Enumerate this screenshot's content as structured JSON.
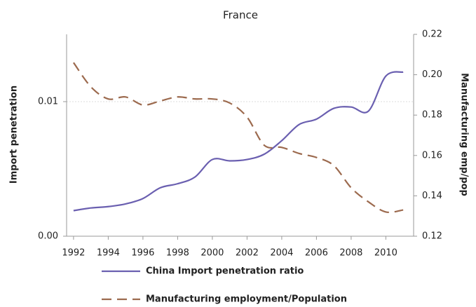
{
  "chart_data": {
    "type": "line",
    "title": "France",
    "x": [
      1992,
      1993,
      1994,
      1995,
      1996,
      1997,
      1998,
      1999,
      2000,
      2001,
      2002,
      2003,
      2004,
      2005,
      2006,
      2007,
      2008,
      2009,
      2010,
      2011
    ],
    "xlim": [
      1991.6,
      2011.6
    ],
    "xticks": [
      1992,
      1994,
      1996,
      1998,
      2000,
      2002,
      2004,
      2006,
      2008,
      2010
    ],
    "ylim": [
      0,
      0.015
    ],
    "yticks": [
      {
        "value": 0,
        "label": "0.00"
      },
      0.01
    ],
    "y2lim": [
      0.12,
      0.22
    ],
    "y2ticks": [
      0.12,
      0.14,
      0.16,
      0.18,
      {
        "value": 0.2,
        "label": "0.20"
      },
      0.22
    ],
    "ylabel": "Import penetration",
    "y2label": "Manufacturing emp/pop",
    "grid": true,
    "legend": "bottom",
    "series": [
      {
        "name": "China Import penetration ratio",
        "color": "#6a5fb0",
        "dash": "solid",
        "values": [
          0.0019,
          0.0021,
          0.0022,
          0.0024,
          0.0028,
          0.0036,
          0.0039,
          0.0044,
          0.0057,
          0.0056,
          0.0057,
          0.0061,
          0.0071,
          0.0083,
          0.0087,
          0.0095,
          0.0096,
          0.0093,
          0.0119,
          0.0122
        ]
      },
      {
        "name": "Manufacturing employment/Population",
        "color": "#9c6a4e",
        "dash": "dashed",
        "axis": "y2",
        "values": [
          0.206,
          0.194,
          0.188,
          0.189,
          0.185,
          0.187,
          0.189,
          0.188,
          0.188,
          0.186,
          0.179,
          0.165,
          0.164,
          0.161,
          0.159,
          0.155,
          0.144,
          0.137,
          0.132,
          0.133
        ]
      }
    ]
  }
}
